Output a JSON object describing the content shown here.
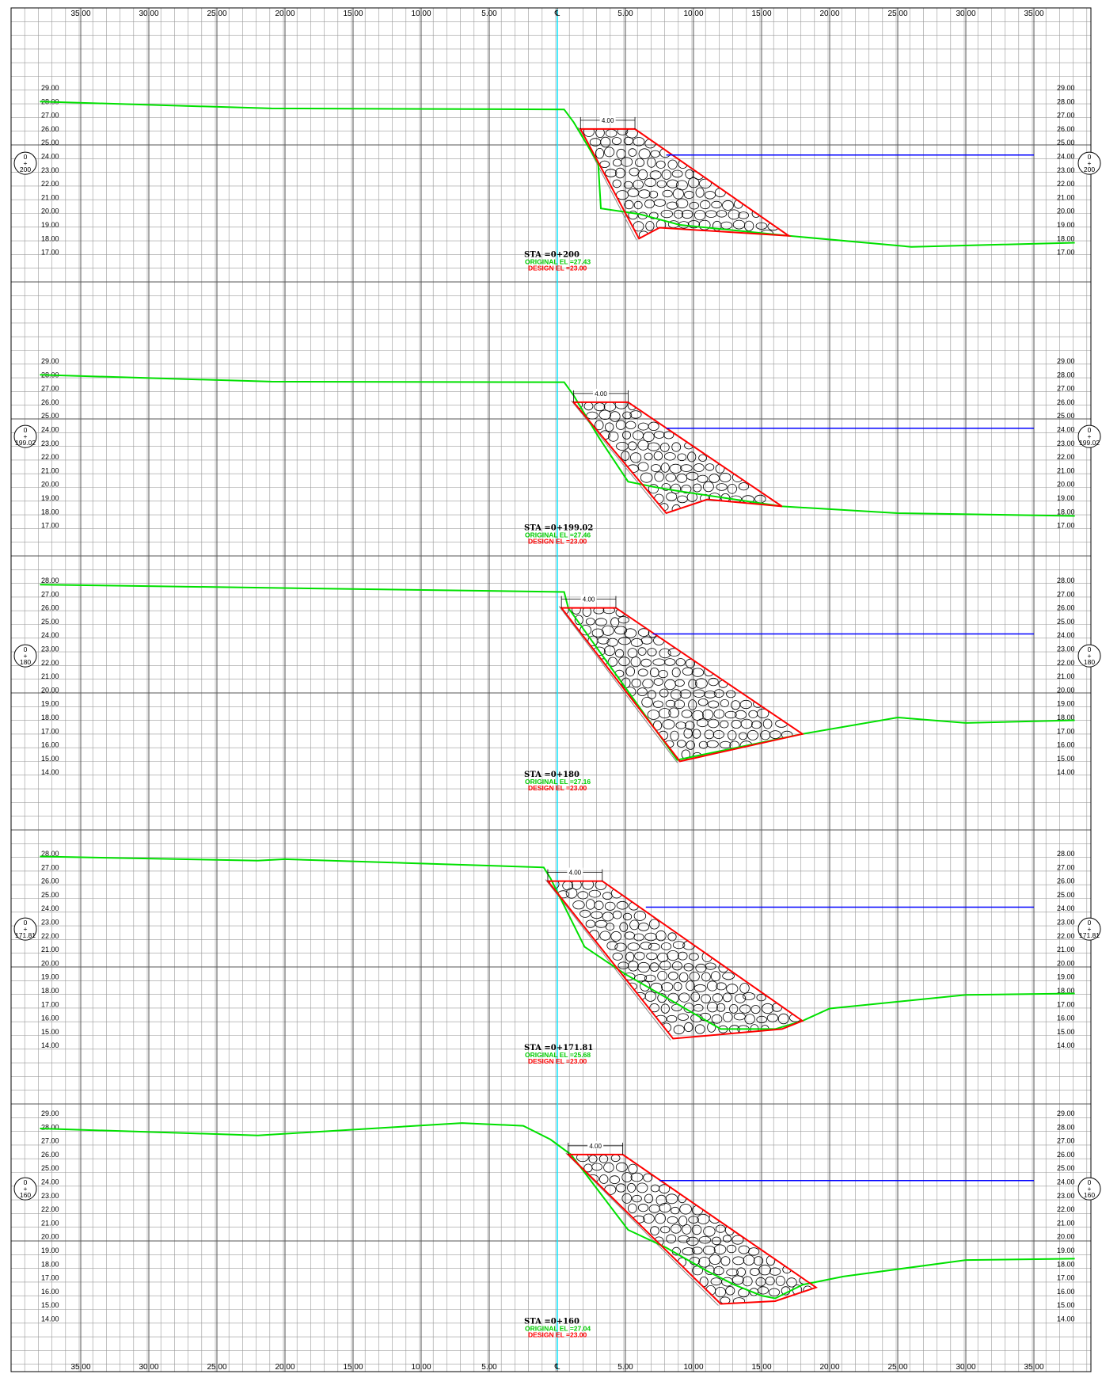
{
  "colors": {
    "grid": "#9a9a9a",
    "ground_line": "#00e000",
    "design_section": "#ff0000",
    "water_line": "#0000ff",
    "centerline": "#00e5ff",
    "riprap": "#000000"
  },
  "x_axis": {
    "labels": [
      "35.00",
      "30.00",
      "25.00",
      "20.00",
      "15.00",
      "10.00",
      "5.00",
      "℄",
      "5.00",
      "10.00",
      "15.00",
      "20.00",
      "25.00",
      "30.00",
      "35.00"
    ],
    "offsets": [
      -35,
      -30,
      -25,
      -20,
      -15,
      -10,
      -5,
      0,
      5,
      10,
      15,
      20,
      25,
      30,
      35
    ]
  },
  "sections": [
    {
      "station_label": "STA =0+200",
      "original_el_label": "ORIGINAL EL =27.43",
      "design_el_label": "DESIGN EL =23.00",
      "bubble_top": "0",
      "bubble_sep": "+",
      "bubble_bottom": "200",
      "top_width_label": "4.00",
      "elev_labels": [
        "29.00",
        "28.00",
        "27.00",
        "26.00",
        "25.00",
        "24.00",
        "23.00",
        "22.00",
        "21.00",
        "20.00",
        "19.00",
        "18.00",
        "17.00"
      ],
      "elev_max": 29,
      "elev_min": 17,
      "ground": [
        [
          -38,
          28
        ],
        [
          -21,
          27.5
        ],
        [
          0.5,
          27.43
        ],
        [
          1.2,
          26.5
        ],
        [
          3,
          23.5
        ],
        [
          3.2,
          20.2
        ],
        [
          6,
          19.8
        ],
        [
          9,
          19
        ],
        [
          17,
          18.2
        ],
        [
          26,
          17.4
        ],
        [
          38,
          17.7
        ]
      ],
      "design": [
        [
          1.7,
          26
        ],
        [
          5.7,
          26
        ],
        [
          17,
          18.2
        ],
        [
          7.5,
          18.8
        ],
        [
          6,
          18
        ]
      ],
      "water": [
        [
          8,
          24.1
        ],
        [
          35,
          24.1
        ]
      ]
    },
    {
      "station_label": "STA =0+199.02",
      "original_el_label": "ORIGINAL EL =27.46",
      "design_el_label": "DESIGN EL =23.00",
      "bubble_top": "0",
      "bubble_sep": "+",
      "bubble_bottom": "199.02",
      "top_width_label": "4.00",
      "elev_labels": [
        "29.00",
        "28.00",
        "27.00",
        "26.00",
        "25.00",
        "24.00",
        "23.00",
        "22.00",
        "21.00",
        "20.00",
        "19.00",
        "18.00",
        "17.00"
      ],
      "elev_max": 29,
      "elev_min": 17,
      "ground": [
        [
          -38,
          28
        ],
        [
          -21,
          27.5
        ],
        [
          0.5,
          27.46
        ],
        [
          1.2,
          26.5
        ],
        [
          3,
          23.5
        ],
        [
          5.2,
          20.2
        ],
        [
          7.2,
          19.8
        ],
        [
          9,
          19.5
        ],
        [
          16.5,
          18.4
        ],
        [
          25,
          17.9
        ],
        [
          38,
          17.7
        ]
      ],
      "design": [
        [
          1.2,
          26
        ],
        [
          5.2,
          26
        ],
        [
          16.5,
          18.4
        ],
        [
          11,
          18.9
        ],
        [
          8,
          17.9
        ]
      ],
      "water": [
        [
          8,
          24.1
        ],
        [
          35,
          24.1
        ]
      ]
    },
    {
      "station_label": "STA =0+180",
      "original_el_label": "ORIGINAL EL =27.16",
      "design_el_label": "DESIGN EL =23.00",
      "bubble_top": "0",
      "bubble_sep": "+",
      "bubble_bottom": "180",
      "top_width_label": "4.00",
      "elev_labels": [
        "28.00",
        "27.00",
        "26.00",
        "25.00",
        "24.00",
        "23.00",
        "22.00",
        "21.00",
        "20.00",
        "19.00",
        "18.00",
        "17.00",
        "16.00",
        "15.00",
        "14.00"
      ],
      "elev_max": 28,
      "elev_min": 14,
      "ground": [
        [
          -38,
          27.7
        ],
        [
          0.5,
          27.16
        ],
        [
          0.8,
          26
        ],
        [
          8.8,
          14.9
        ],
        [
          18,
          16.8
        ],
        [
          25,
          18
        ],
        [
          30,
          17.6
        ],
        [
          38,
          17.8
        ]
      ],
      "design": [
        [
          0.3,
          26
        ],
        [
          4.3,
          26
        ],
        [
          18,
          16.8
        ],
        [
          9,
          14.8
        ]
      ],
      "water": [
        [
          7,
          24.1
        ],
        [
          35,
          24.1
        ]
      ]
    },
    {
      "station_label": "STA =0+171.81",
      "original_el_label": "ORIGINAL EL =25.68",
      "design_el_label": "DESIGN EL =23.00",
      "bubble_top": "0",
      "bubble_sep": "+",
      "bubble_bottom": "171.81",
      "top_width_label": "4.00",
      "elev_labels": [
        "28.00",
        "27.00",
        "26.00",
        "25.00",
        "24.00",
        "23.00",
        "22.00",
        "21.00",
        "20.00",
        "19.00",
        "18.00",
        "17.00",
        "16.00",
        "15.00",
        "14.00"
      ],
      "elev_max": 28,
      "elev_min": 14,
      "ground": [
        [
          -38,
          27.8
        ],
        [
          -22,
          27.5
        ],
        [
          -20,
          27.6
        ],
        [
          -1,
          27.0
        ],
        [
          -0.5,
          26.2
        ],
        [
          2,
          21.2
        ],
        [
          5,
          19.2
        ],
        [
          8,
          17.5
        ],
        [
          12,
          15.2
        ],
        [
          16,
          15.2
        ],
        [
          18,
          15.8
        ],
        [
          20,
          16.7
        ],
        [
          30,
          17.7
        ],
        [
          38,
          17.8
        ]
      ],
      "design": [
        [
          -0.7,
          26
        ],
        [
          3.3,
          26
        ],
        [
          18,
          15.8
        ],
        [
          16.5,
          15.2
        ],
        [
          8.5,
          14.5
        ]
      ],
      "water": [
        [
          6.5,
          24.1
        ],
        [
          35,
          24.1
        ]
      ]
    },
    {
      "station_label": "STA =0+160",
      "original_el_label": "ORIGINAL EL =27.04",
      "design_el_label": "DESIGN EL =23.00",
      "bubble_top": "0",
      "bubble_sep": "+",
      "bubble_bottom": "160",
      "top_width_label": "4.00",
      "elev_labels": [
        "29.00",
        "28.00",
        "27.00",
        "26.00",
        "25.00",
        "24.00",
        "23.00",
        "22.00",
        "21.00",
        "20.00",
        "19.00",
        "18.00",
        "17.00",
        "16.00",
        "15.00",
        "14.00"
      ],
      "elev_max": 29,
      "elev_min": 14,
      "ground": [
        [
          -38,
          27.9
        ],
        [
          -22,
          27.4
        ],
        [
          -7,
          28.3
        ],
        [
          -2.5,
          28.1
        ],
        [
          -0.5,
          27.1
        ],
        [
          1,
          26
        ],
        [
          5.2,
          20.5
        ],
        [
          8,
          19.2
        ],
        [
          11,
          17.5
        ],
        [
          13,
          16.5
        ],
        [
          15,
          15.7
        ],
        [
          16,
          15.5
        ],
        [
          18,
          16.5
        ],
        [
          21,
          17.1
        ],
        [
          30,
          18.3
        ],
        [
          38,
          18.4
        ]
      ],
      "design": [
        [
          0.8,
          26
        ],
        [
          4.8,
          26
        ],
        [
          19,
          16.3
        ],
        [
          16,
          15.3
        ],
        [
          12,
          15.1
        ]
      ],
      "water": [
        [
          7.5,
          24.1
        ],
        [
          35,
          24.1
        ]
      ]
    }
  ]
}
